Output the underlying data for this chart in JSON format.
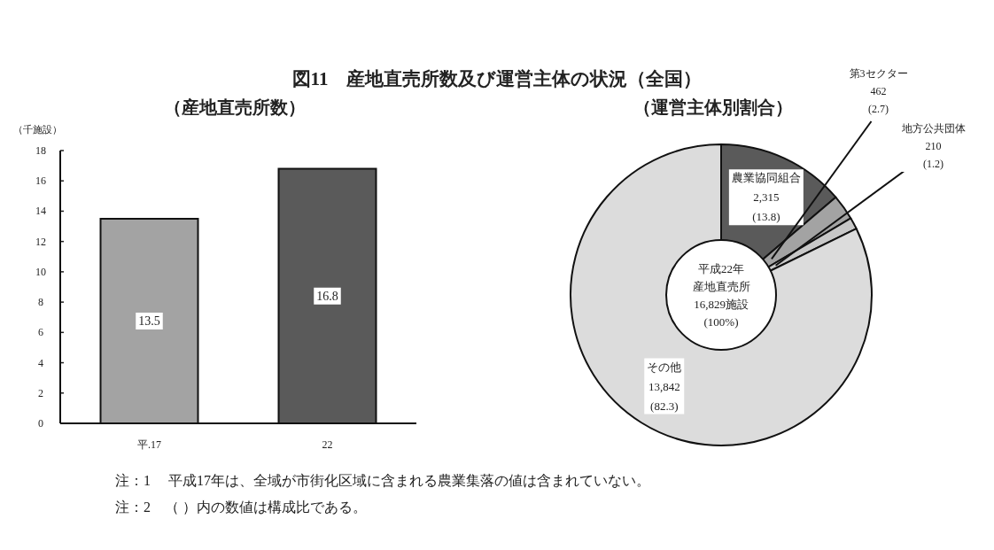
{
  "chart_data": [
    {
      "type": "bar",
      "title": "図11　産地直売所数及び運営主体の状況（全国）",
      "subtitle": "（産地直売所数）",
      "ylabel": "（千施設）",
      "categories": [
        "平.17",
        "22"
      ],
      "values": [
        13.5,
        16.8
      ],
      "colors": [
        "#a3a3a3",
        "#5a5a5a"
      ],
      "ylim": [
        0,
        18
      ],
      "yticks": [
        0,
        2,
        4,
        6,
        8,
        10,
        12,
        14,
        16,
        18
      ],
      "data_labels": true,
      "grid": false,
      "annotations": [
        "注：1　 平成17年は、全域が市街化区域に含まれる農業集落の値は含まれていない。",
        "注：2　（ ）内の数値は構成比である。"
      ]
    },
    {
      "type": "donut",
      "subtitle": "（運営主体別割合）",
      "categories": [
        "農業協同組合",
        "第3セクター",
        "地方公共団体",
        "その他"
      ],
      "values": [
        2315,
        462,
        210,
        13842
      ],
      "value_labels": [
        "2,315\n(13.8)",
        "462\n(2.7)",
        "210\n(1.2)",
        "13,842\n(82.3)"
      ],
      "colors": [
        "#5a5a5a",
        "#a3a3a3",
        "#c8c8c8",
        "#dcdcdc"
      ],
      "annotations": [
        "平成22年",
        "産地直売所",
        "16,829施設",
        "(100%)"
      ]
    }
  ]
}
